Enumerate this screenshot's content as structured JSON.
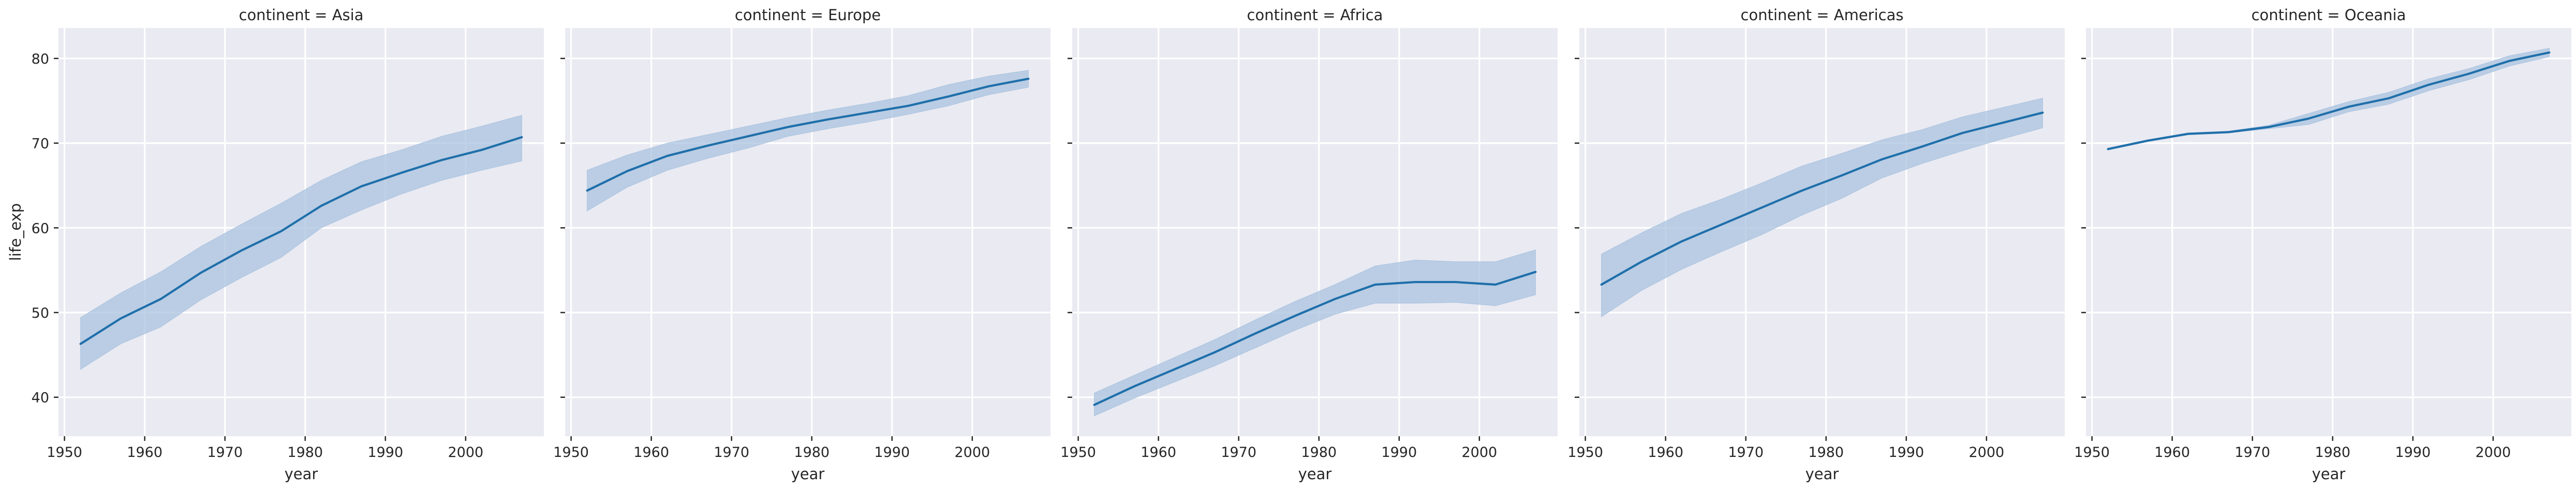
{
  "chart_data": {
    "type": "line",
    "xlabel": "year",
    "ylabel": "life_exp",
    "xlim": [
      1949.25,
      2009.75
    ],
    "ylim": [
      35.4,
      83.6
    ],
    "x_ticks": [
      1950,
      1960,
      1970,
      1980,
      1990,
      2000
    ],
    "y_ticks": [
      40,
      50,
      60,
      70,
      80
    ],
    "grid": true,
    "line_color": "#1f6faa",
    "band_color": "#a9c3df",
    "x": [
      1952,
      1957,
      1962,
      1967,
      1972,
      1977,
      1982,
      1987,
      1992,
      1997,
      2002,
      2007
    ],
    "facets": [
      {
        "title": "continent = Asia",
        "values": [
          46.3,
          49.3,
          51.6,
          54.7,
          57.3,
          59.6,
          62.6,
          64.9,
          66.5,
          68.0,
          69.2,
          70.7
        ],
        "lower": [
          43.3,
          46.3,
          48.3,
          51.5,
          54.1,
          56.5,
          60.0,
          62.1,
          64.0,
          65.6,
          66.8,
          67.9
        ],
        "upper": [
          49.4,
          52.3,
          54.8,
          57.8,
          60.4,
          62.9,
          65.6,
          67.8,
          69.2,
          70.8,
          72.0,
          73.3
        ]
      },
      {
        "title": "continent = Europe",
        "values": [
          64.4,
          66.7,
          68.5,
          69.7,
          70.8,
          71.9,
          72.8,
          73.6,
          74.4,
          75.5,
          76.7,
          77.6
        ],
        "lower": [
          62.0,
          64.8,
          66.8,
          68.2,
          69.4,
          70.8,
          71.7,
          72.5,
          73.4,
          74.4,
          75.7,
          76.6
        ],
        "upper": [
          66.8,
          68.6,
          70.0,
          71.0,
          72.0,
          73.0,
          73.9,
          74.7,
          75.6,
          76.9,
          77.9,
          78.6
        ]
      },
      {
        "title": "continent = Africa",
        "values": [
          39.1,
          41.3,
          43.3,
          45.3,
          47.5,
          49.6,
          51.6,
          53.3,
          53.6,
          53.6,
          53.3,
          54.8
        ],
        "lower": [
          37.8,
          39.9,
          41.8,
          43.7,
          45.8,
          47.9,
          49.8,
          51.1,
          51.1,
          51.2,
          50.8,
          52.1
        ],
        "upper": [
          40.5,
          42.6,
          44.7,
          46.8,
          49.1,
          51.3,
          53.3,
          55.5,
          56.2,
          56.0,
          56.0,
          57.4
        ]
      },
      {
        "title": "continent = Americas",
        "values": [
          53.3,
          56.0,
          58.4,
          60.4,
          62.4,
          64.4,
          66.2,
          68.1,
          69.6,
          71.2,
          72.4,
          73.6
        ],
        "lower": [
          49.5,
          52.6,
          55.1,
          57.2,
          59.2,
          61.5,
          63.5,
          65.9,
          67.6,
          69.1,
          70.5,
          71.8
        ],
        "upper": [
          56.9,
          59.4,
          61.7,
          63.4,
          65.3,
          67.3,
          68.8,
          70.4,
          71.6,
          73.1,
          74.2,
          75.3
        ]
      },
      {
        "title": "continent = Oceania",
        "values": [
          69.3,
          70.3,
          71.1,
          71.3,
          71.9,
          72.9,
          74.3,
          75.3,
          76.9,
          78.2,
          79.7,
          80.7
        ],
        "lower": [
          69.2,
          70.2,
          71.0,
          71.2,
          71.7,
          72.2,
          73.7,
          74.6,
          76.2,
          77.5,
          79.1,
          80.2
        ],
        "upper": [
          69.4,
          70.4,
          71.2,
          71.4,
          72.1,
          73.5,
          74.9,
          76.0,
          77.6,
          78.8,
          80.3,
          81.2
        ]
      }
    ]
  }
}
